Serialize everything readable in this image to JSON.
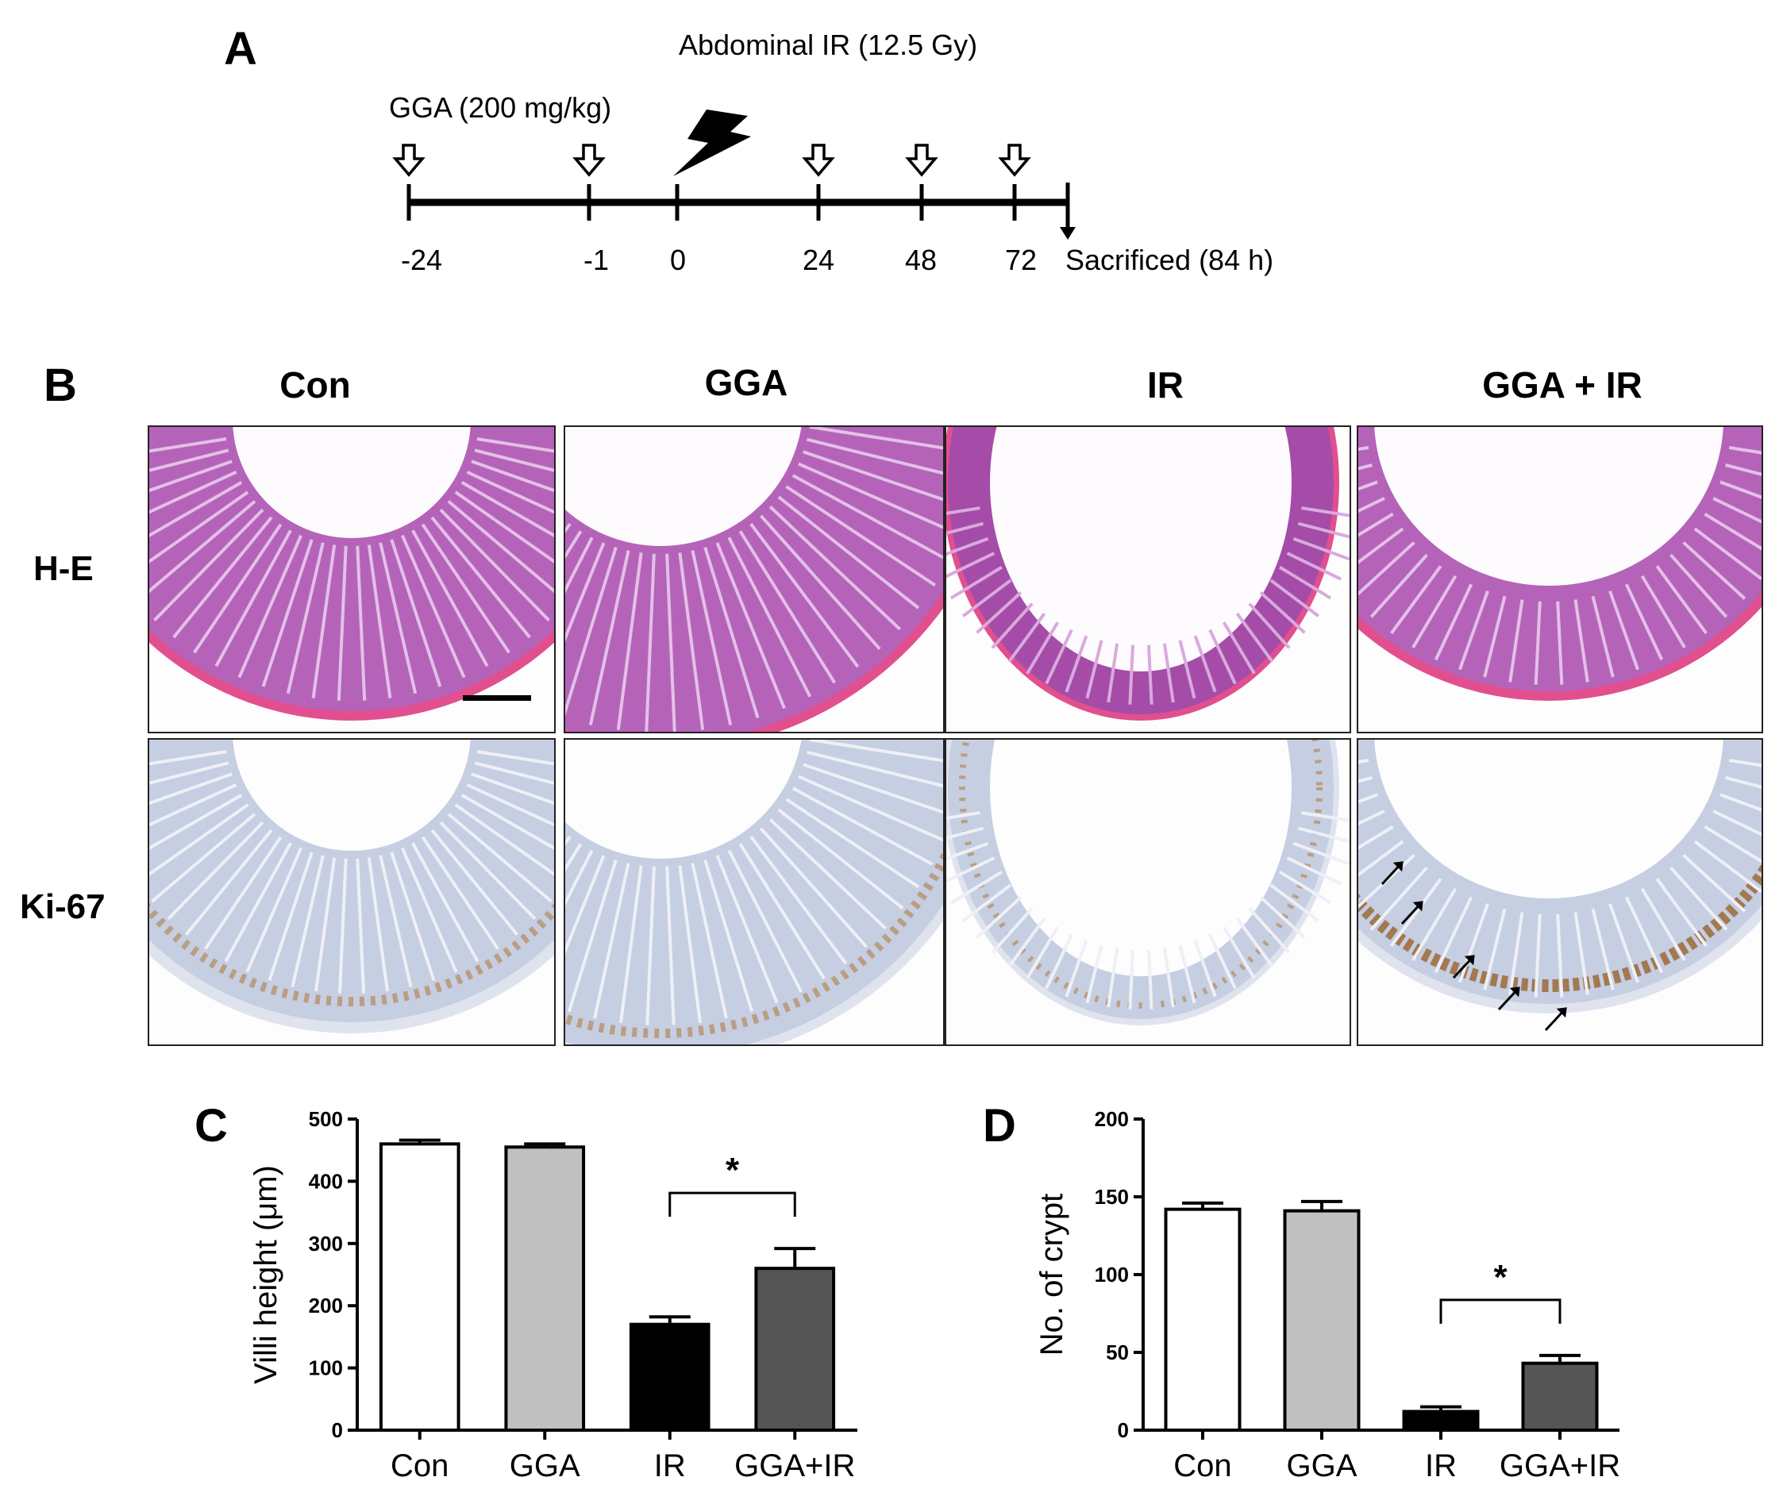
{
  "panel_labels": {
    "a": "A",
    "b": "B",
    "c": "C",
    "d": "D"
  },
  "timeline": {
    "ir_label": "Abdominal IR (12.5 Gy)",
    "gga_label": "GGA (200 mg/kg)",
    "ticks": [
      "-24",
      "-1",
      "0",
      "24",
      "48",
      "72"
    ],
    "end_label": "Sacrificed (84 h)"
  },
  "histology": {
    "columns": [
      "Con",
      "GGA",
      "IR",
      "GGA + IR"
    ],
    "rows": [
      "H-E",
      "Ki-67"
    ],
    "colors": {
      "he_tissue": "#b060b8",
      "he_edge": "#e0508c",
      "ki_tissue": "#c4cde0",
      "ki_stain": "#a0703c"
    }
  },
  "chart_data": [
    {
      "type": "bar",
      "panel": "C",
      "categories": [
        "Con",
        "GGA",
        "IR",
        "GGA+IR"
      ],
      "values": [
        460,
        455,
        170,
        260
      ],
      "errors": [
        6,
        5,
        12,
        32
      ],
      "fill_colors": [
        "#ffffff",
        "#c0c0c0",
        "#000000",
        "#555555"
      ],
      "ylabel": "Villi height (μm)",
      "ylim": [
        0,
        500
      ],
      "yticks": [
        "0",
        "100",
        "200",
        "300",
        "400",
        "500"
      ],
      "significance": {
        "from": "IR",
        "to": "GGA+IR",
        "label": "*"
      }
    },
    {
      "type": "bar",
      "panel": "D",
      "categories": [
        "Con",
        "GGA",
        "IR",
        "GGA+IR"
      ],
      "values": [
        142,
        141,
        12,
        43
      ],
      "errors": [
        4,
        6,
        3,
        5
      ],
      "fill_colors": [
        "#ffffff",
        "#c0c0c0",
        "#000000",
        "#555555"
      ],
      "ylabel": "No. of crypt",
      "ylim": [
        0,
        200
      ],
      "yticks": [
        "0",
        "50",
        "100",
        "150",
        "200"
      ],
      "significance": {
        "from": "IR",
        "to": "GGA+IR",
        "label": "*"
      }
    }
  ]
}
